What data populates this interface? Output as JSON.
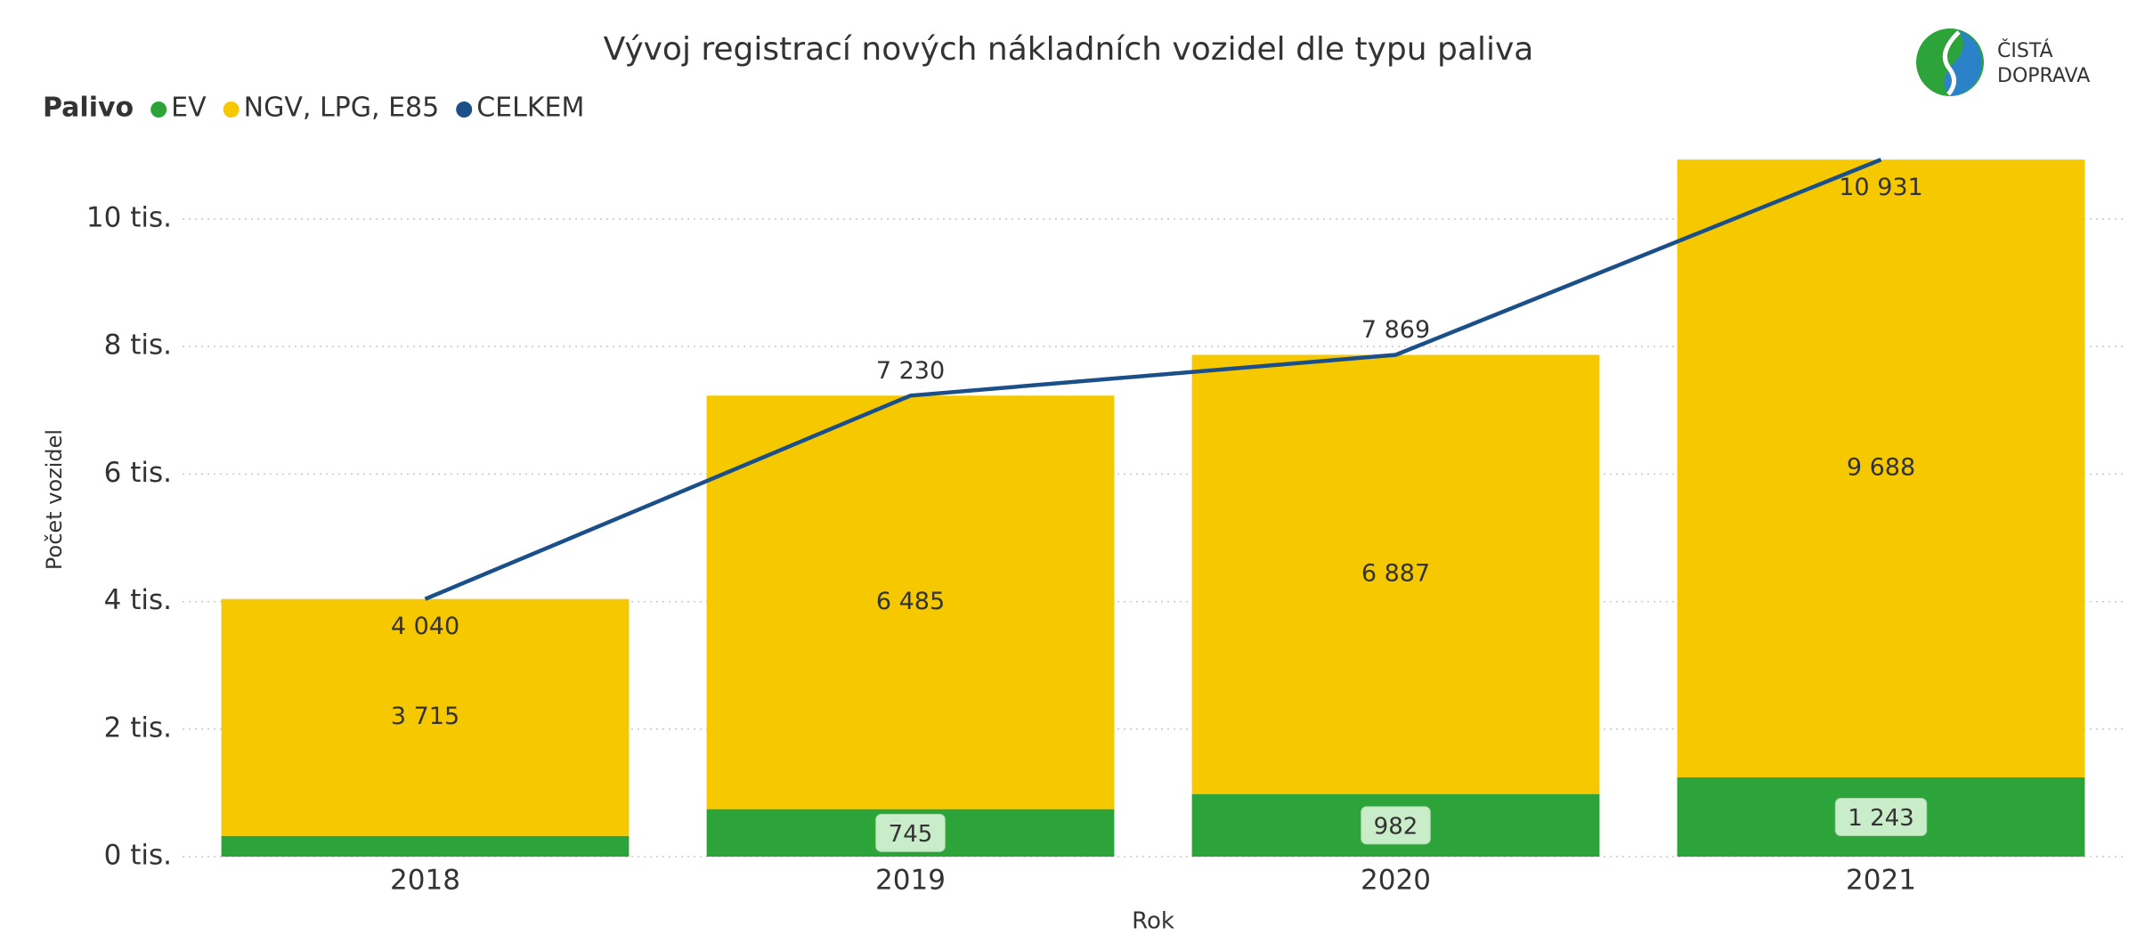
{
  "chart_data": {
    "type": "bar",
    "stacked": true,
    "title": "Vývoj registrací nových nákladních vozidel dle typu paliva",
    "legend_title": "Palivo",
    "x_label": "Rok",
    "y_label": "Počet vozidel",
    "categories": [
      "2018",
      "2019",
      "2020",
      "2021"
    ],
    "series": [
      {
        "name": "EV",
        "color": "#2ca43a",
        "values": [
          325,
          745,
          982,
          1243
        ],
        "value_labels": [
          null,
          "745",
          "982",
          "1 243"
        ]
      },
      {
        "name": "NGV, LPG, E85",
        "color": "#f5c800",
        "values": [
          3715,
          6485,
          6887,
          9688
        ],
        "value_labels": [
          "3 715",
          "6 485",
          "6 887",
          "9 688"
        ]
      },
      {
        "name": "CELKEM",
        "type": "line",
        "color": "#1b4f8a",
        "values": [
          4040,
          7230,
          7869,
          10931
        ],
        "value_labels": [
          "4 040",
          "7 230",
          "7 869",
          "10 931"
        ]
      }
    ],
    "ylim": [
      0,
      11200
    ],
    "yticks": [
      {
        "value": 0,
        "label": "0 tis."
      },
      {
        "value": 2000,
        "label": "2 tis."
      },
      {
        "value": 4000,
        "label": "4 tis."
      },
      {
        "value": 6000,
        "label": "6 tis."
      },
      {
        "value": 8000,
        "label": "8 tis."
      },
      {
        "value": 10000,
        "label": "10 tis."
      }
    ],
    "grid": true,
    "legend_position": "top-left"
  },
  "logo": {
    "lines": [
      "ČISTÁ",
      "DOPRAVA"
    ]
  }
}
